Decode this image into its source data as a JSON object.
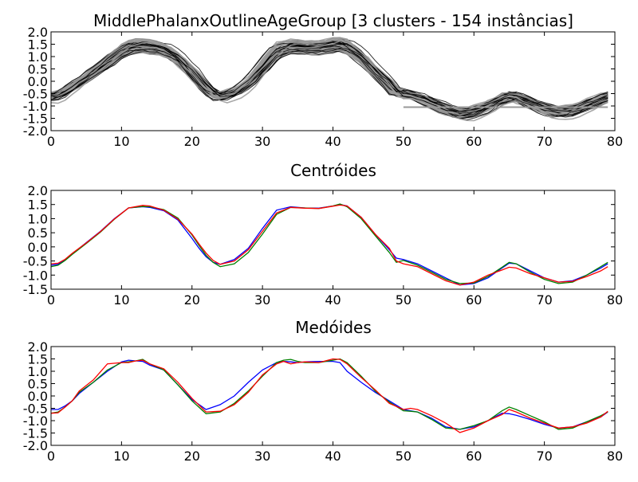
{
  "chart_data": [
    {
      "type": "line",
      "title": "MiddlePhalanxOutlineAgeGroup [3 clusters - 154 instâncias]",
      "xlim": [
        0,
        80
      ],
      "ylim": [
        -2.0,
        2.0
      ],
      "xticks": [
        "0",
        "10",
        "20",
        "30",
        "40",
        "50",
        "60",
        "70",
        "80"
      ],
      "yticks": [
        "2.0",
        "1.5",
        "1.0",
        "0.5",
        "0.0",
        "-0.5",
        "-1.0",
        "-1.5",
        "-2.0"
      ],
      "grid": false,
      "series_colors": [
        "#000000",
        "#999999"
      ],
      "note": "overlay of all 154 instance series (black / gray)"
    },
    {
      "type": "line",
      "title": "Centróides",
      "xlim": [
        0,
        80
      ],
      "ylim": [
        -1.5,
        2.0
      ],
      "xticks": [
        "0",
        "10",
        "20",
        "30",
        "40",
        "50",
        "60",
        "70",
        "80"
      ],
      "yticks": [
        "2.0",
        "1.5",
        "1.0",
        "0.5",
        "0.0",
        "-0.5",
        "-1.0",
        "-1.5"
      ],
      "grid": false,
      "series": [
        {
          "color": "#0000ff",
          "x": [
            0,
            1,
            2,
            3,
            5,
            7,
            9,
            11,
            13,
            14,
            16,
            18,
            20,
            21,
            22,
            23,
            24,
            26,
            28,
            30,
            32,
            34,
            36,
            38,
            40,
            41,
            42,
            44,
            46,
            48,
            49,
            50,
            52,
            54,
            56,
            58,
            60,
            62,
            64,
            65,
            66,
            68,
            70,
            72,
            74,
            76,
            78,
            79
          ],
          "y": [
            -0.65,
            -0.62,
            -0.45,
            -0.25,
            0.15,
            0.55,
            1.0,
            1.38,
            1.42,
            1.4,
            1.28,
            0.95,
            0.3,
            -0.05,
            -0.35,
            -0.55,
            -0.62,
            -0.45,
            -0.05,
            0.65,
            1.3,
            1.42,
            1.38,
            1.37,
            1.45,
            1.5,
            1.45,
            1.05,
            0.45,
            -0.1,
            -0.4,
            -0.45,
            -0.6,
            -0.85,
            -1.1,
            -1.35,
            -1.3,
            -1.1,
            -0.75,
            -0.58,
            -0.6,
            -0.85,
            -1.1,
            -1.25,
            -1.2,
            -1.0,
            -0.75,
            -0.6
          ]
        },
        {
          "color": "#008000",
          "x": [
            0,
            1,
            2,
            3,
            5,
            7,
            9,
            11,
            13,
            14,
            16,
            18,
            20,
            21,
            22,
            23,
            24,
            26,
            28,
            30,
            32,
            34,
            36,
            38,
            40,
            41,
            42,
            44,
            46,
            48,
            49,
            50,
            52,
            54,
            56,
            58,
            60,
            62,
            64,
            65,
            66,
            68,
            70,
            72,
            74,
            76,
            78,
            79
          ],
          "y": [
            -0.7,
            -0.65,
            -0.48,
            -0.27,
            0.12,
            0.52,
            0.98,
            1.38,
            1.43,
            1.42,
            1.32,
            1.02,
            0.42,
            0.05,
            -0.3,
            -0.55,
            -0.7,
            -0.6,
            -0.2,
            0.45,
            1.15,
            1.4,
            1.38,
            1.36,
            1.45,
            1.52,
            1.42,
            1.0,
            0.4,
            -0.2,
            -0.55,
            -0.48,
            -0.65,
            -0.9,
            -1.15,
            -1.3,
            -1.28,
            -1.05,
            -0.72,
            -0.55,
            -0.6,
            -0.9,
            -1.15,
            -1.3,
            -1.25,
            -1.0,
            -0.7,
            -0.55
          ]
        },
        {
          "color": "#ff0000",
          "x": [
            0,
            1,
            2,
            3,
            5,
            7,
            9,
            11,
            13,
            14,
            16,
            18,
            20,
            21,
            22,
            23,
            24,
            26,
            28,
            30,
            32,
            34,
            36,
            38,
            40,
            41,
            42,
            44,
            46,
            48,
            49,
            50,
            52,
            54,
            56,
            58,
            60,
            62,
            64,
            65,
            66,
            68,
            70,
            72,
            74,
            76,
            78,
            79
          ],
          "y": [
            -0.6,
            -0.58,
            -0.44,
            -0.23,
            0.14,
            0.54,
            0.99,
            1.38,
            1.47,
            1.45,
            1.3,
            0.98,
            0.45,
            0.1,
            -0.22,
            -0.48,
            -0.62,
            -0.5,
            -0.1,
            0.55,
            1.2,
            1.4,
            1.37,
            1.36,
            1.44,
            1.48,
            1.45,
            1.05,
            0.45,
            -0.05,
            -0.5,
            -0.6,
            -0.7,
            -0.95,
            -1.2,
            -1.35,
            -1.25,
            -1.0,
            -0.82,
            -0.72,
            -0.75,
            -0.95,
            -1.1,
            -1.25,
            -1.22,
            -1.05,
            -0.85,
            -0.7
          ]
        }
      ]
    },
    {
      "type": "line",
      "title": "Medóides",
      "xlim": [
        0,
        80
      ],
      "ylim": [
        -2.0,
        2.0
      ],
      "xticks": [
        "0",
        "10",
        "20",
        "30",
        "40",
        "50",
        "60",
        "70",
        "80"
      ],
      "yticks": [
        "2.0",
        "1.5",
        "1.0",
        "0.5",
        "0.0",
        "-0.5",
        "-1.0",
        "-1.5",
        "-2.0"
      ],
      "grid": false,
      "series": [
        {
          "color": "#0000ff",
          "x": [
            0,
            1,
            2,
            3,
            4,
            6,
            8,
            10,
            11,
            12,
            13,
            14,
            16,
            18,
            20,
            22,
            24,
            26,
            28,
            30,
            32,
            33,
            34,
            35,
            36,
            38,
            40,
            41,
            42,
            44,
            46,
            48,
            50,
            51,
            52,
            54,
            56,
            58,
            60,
            62,
            64,
            65,
            66,
            68,
            70,
            72,
            74,
            76,
            78,
            79
          ],
          "y": [
            -0.55,
            -0.55,
            -0.4,
            -0.2,
            0.1,
            0.55,
            1.0,
            1.38,
            1.45,
            1.42,
            1.4,
            1.25,
            1.05,
            0.45,
            -0.15,
            -0.55,
            -0.35,
            0.0,
            0.55,
            1.05,
            1.35,
            1.4,
            1.38,
            1.35,
            1.38,
            1.4,
            1.4,
            1.35,
            1.0,
            0.55,
            0.15,
            -0.2,
            -0.55,
            -0.6,
            -0.65,
            -0.9,
            -1.25,
            -1.35,
            -1.25,
            -1.0,
            -0.7,
            -0.72,
            -0.78,
            -0.95,
            -1.15,
            -1.3,
            -1.25,
            -1.05,
            -0.85,
            -0.65
          ]
        },
        {
          "color": "#008000",
          "x": [
            0,
            1,
            2,
            3,
            4,
            6,
            8,
            10,
            11,
            12,
            13,
            14,
            16,
            18,
            20,
            22,
            24,
            26,
            28,
            30,
            32,
            33,
            34,
            35,
            36,
            38,
            40,
            41,
            42,
            44,
            46,
            48,
            50,
            51,
            52,
            54,
            56,
            58,
            60,
            62,
            64,
            65,
            66,
            68,
            70,
            72,
            74,
            76,
            78,
            79
          ],
          "y": [
            -0.7,
            -0.65,
            -0.45,
            -0.2,
            0.15,
            0.55,
            1.05,
            1.35,
            1.38,
            1.42,
            1.48,
            1.3,
            1.05,
            0.45,
            -0.2,
            -0.72,
            -0.65,
            -0.3,
            0.2,
            0.8,
            1.35,
            1.45,
            1.48,
            1.4,
            1.35,
            1.35,
            1.45,
            1.5,
            1.35,
            0.8,
            0.2,
            -0.25,
            -0.6,
            -0.62,
            -0.65,
            -0.95,
            -1.3,
            -1.35,
            -1.2,
            -1.0,
            -0.6,
            -0.45,
            -0.55,
            -0.8,
            -1.05,
            -1.35,
            -1.3,
            -1.05,
            -0.8,
            -0.65
          ]
        },
        {
          "color": "#ff0000",
          "x": [
            0,
            1,
            2,
            3,
            4,
            6,
            8,
            10,
            11,
            12,
            13,
            14,
            16,
            18,
            20,
            22,
            24,
            26,
            28,
            30,
            32,
            33,
            34,
            35,
            36,
            38,
            40,
            41,
            42,
            44,
            46,
            48,
            50,
            51,
            52,
            54,
            56,
            58,
            60,
            62,
            64,
            65,
            66,
            68,
            70,
            72,
            74,
            76,
            78,
            79
          ],
          "y": [
            -0.7,
            -0.68,
            -0.45,
            -0.2,
            0.2,
            0.65,
            1.3,
            1.35,
            1.35,
            1.42,
            1.45,
            1.3,
            1.1,
            0.55,
            -0.1,
            -0.65,
            -0.62,
            -0.35,
            0.15,
            0.85,
            1.3,
            1.4,
            1.3,
            1.35,
            1.38,
            1.35,
            1.5,
            1.48,
            1.3,
            0.75,
            0.25,
            -0.3,
            -0.55,
            -0.5,
            -0.55,
            -0.8,
            -1.1,
            -1.48,
            -1.3,
            -1.0,
            -0.75,
            -0.55,
            -0.65,
            -0.9,
            -1.1,
            -1.3,
            -1.25,
            -1.1,
            -0.85,
            -0.62
          ]
        }
      ]
    }
  ]
}
